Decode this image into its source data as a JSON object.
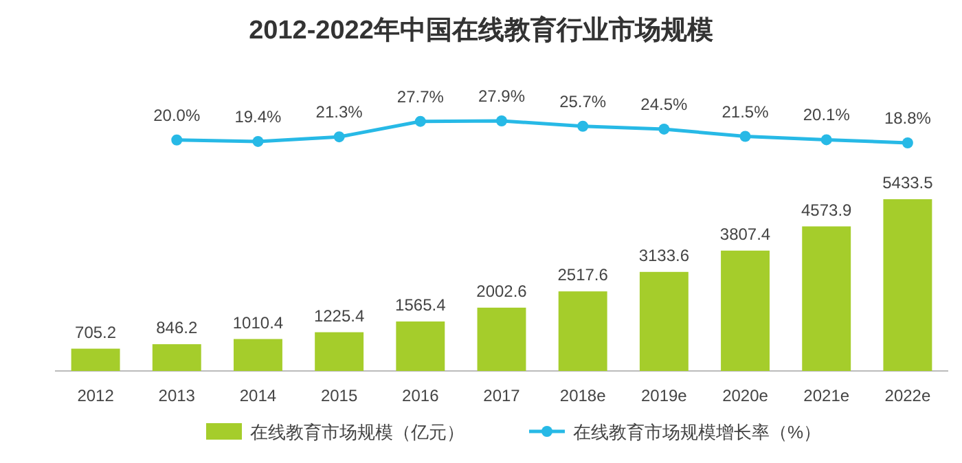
{
  "chart_data": [
    {
      "type": "line",
      "title": "2012-2022年中国在线教育行业市场规模",
      "categories": [
        null,
        null,
        null,
        null,
        null,
        null,
        null,
        null,
        null,
        null,
        null
      ],
      "series": [
        {
          "name": "在线教育市场规模增长率（%）",
          "color": "#27b9e6",
          "values": [
            null,
            20.0,
            19.4,
            21.3,
            27.7,
            27.9,
            25.7,
            24.5,
            21.5,
            20.1,
            18.8
          ],
          "value_labels": [
            null,
            "20.0%",
            "19.4%",
            "21.3%",
            "27.7%",
            "27.9%",
            "25.7%",
            "24.5%",
            "21.5%",
            "20.1%",
            "18.8%"
          ]
        }
      ],
      "tick_labels": false,
      "legend": "bottom",
      "marker": "circle"
    },
    {
      "type": "bar",
      "categories": [
        "2012",
        "2013",
        "2014",
        "2015",
        "2016",
        "2017",
        "2018e",
        "2019e",
        "2020e",
        "2021e",
        "2022e"
      ],
      "series": [
        {
          "name": "在线教育市场规模（亿元）",
          "color": "#a5cd2b",
          "values": [
            705.2,
            846.2,
            1010.4,
            1225.4,
            1565.4,
            2002.6,
            2517.6,
            3133.6,
            3807.4,
            4573.9,
            5433.5
          ]
        }
      ],
      "data_labels": true,
      "tick_labels": "x",
      "legend": "bottom"
    }
  ]
}
